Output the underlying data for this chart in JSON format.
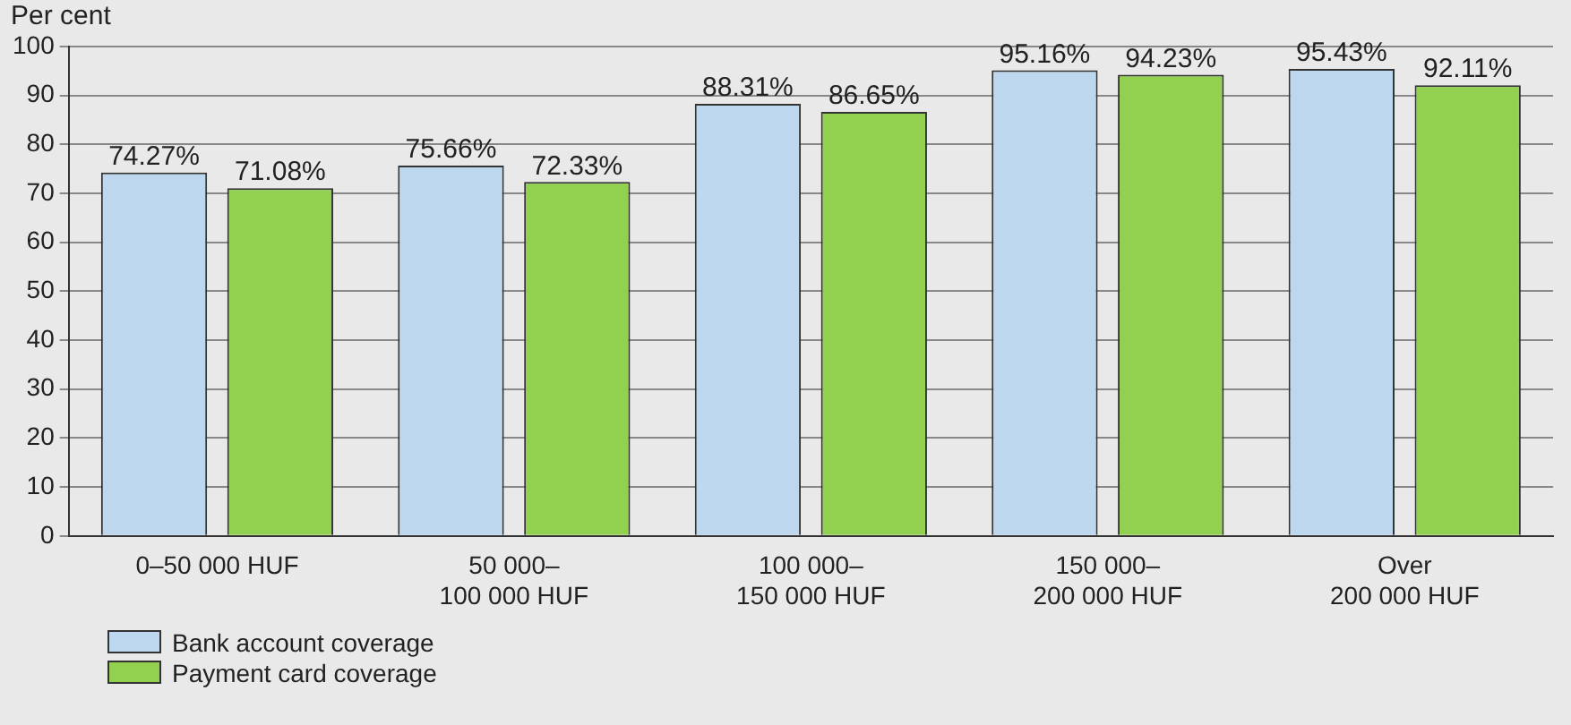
{
  "chart_data": {
    "type": "bar",
    "ylabel": "Per cent",
    "categories": [
      "0–50 000 HUF",
      "50 000–\n100 000 HUF",
      "100 000–\n150 000 HUF",
      "150 000–\n200 000 HUF",
      "Over\n200 000 HUF"
    ],
    "series": [
      {
        "name": "Bank account coverage",
        "color": "#bdd7ee",
        "values": [
          74.27,
          75.66,
          88.31,
          95.16,
          95.43
        ],
        "value_labels": [
          "74.27%",
          "75.66%",
          "88.31%",
          "95.16%",
          "95.43%"
        ]
      },
      {
        "name": "Payment card coverage",
        "color": "#92d050",
        "values": [
          71.08,
          72.33,
          86.65,
          94.23,
          92.11
        ],
        "value_labels": [
          "71.08%",
          "72.33%",
          "86.65%",
          "94.23%",
          "92.11%"
        ]
      }
    ],
    "ylim": [
      0,
      100
    ],
    "yticks": [
      0,
      10,
      20,
      30,
      40,
      50,
      60,
      70,
      80,
      90,
      100
    ],
    "grid": "y",
    "legend": "bottom left"
  }
}
